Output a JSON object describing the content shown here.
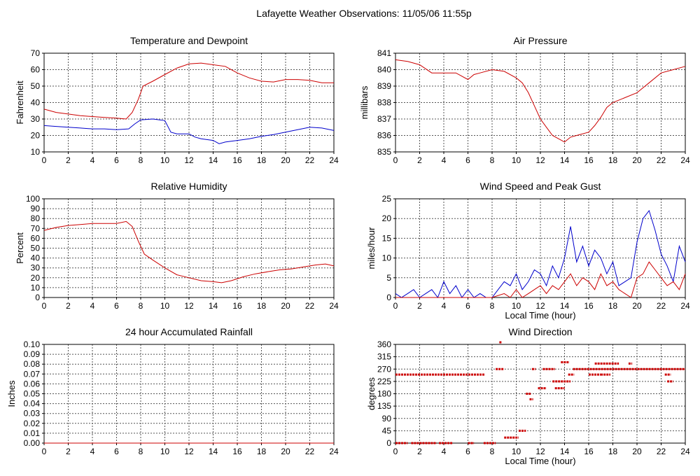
{
  "page": {
    "title": "Lafayette Weather Observations: 11/05/06 11:55p"
  },
  "colors": {
    "series_red": "#cc0000",
    "series_blue": "#0000cc",
    "grid": "#555555",
    "frame": "#000000"
  },
  "chart_data": [
    {
      "id": "temp",
      "type": "line",
      "title": "Temperature and Dewpoint",
      "xlabel": "",
      "ylabel": "Fahrenheit",
      "xlim": [
        0,
        24
      ],
      "ylim": [
        10,
        70
      ],
      "xticks": [
        0,
        2,
        4,
        6,
        8,
        10,
        12,
        14,
        16,
        18,
        20,
        22,
        24
      ],
      "yticks": [
        10,
        20,
        30,
        40,
        50,
        60,
        70
      ],
      "grid": true,
      "series": [
        {
          "color": "#cc0000",
          "x": [
            0,
            1,
            2,
            3,
            4,
            5,
            6,
            6.8,
            7.3,
            7.8,
            8.2,
            9,
            10,
            11,
            12,
            13,
            14,
            15,
            16,
            17,
            18,
            19,
            20,
            21,
            22,
            23,
            24
          ],
          "y": [
            36,
            34,
            33,
            32,
            31.5,
            31,
            30.5,
            30,
            34,
            42,
            50,
            53,
            57,
            61,
            63.5,
            64,
            63,
            62,
            58,
            55,
            53,
            52.5,
            54,
            54,
            53.5,
            52,
            52
          ]
        },
        {
          "color": "#0000cc",
          "x": [
            0,
            1,
            2,
            3,
            4,
            5,
            6,
            7,
            7.5,
            8,
            9,
            10,
            10.5,
            11,
            12,
            12.5,
            13,
            14,
            14.5,
            15,
            16,
            17,
            18,
            19,
            20,
            21,
            22,
            23,
            24
          ],
          "y": [
            26,
            25.5,
            25,
            24.5,
            24,
            24,
            23.5,
            24,
            27,
            29.5,
            30,
            29,
            22,
            21,
            21,
            19,
            18,
            17,
            15,
            16,
            17,
            18,
            19.5,
            20.5,
            22,
            23.5,
            25,
            24.5,
            23
          ]
        }
      ]
    },
    {
      "id": "pressure",
      "type": "line",
      "title": "Air Pressure",
      "xlabel": "",
      "ylabel": "millibars",
      "xlim": [
        0,
        24
      ],
      "ylim": [
        835,
        841
      ],
      "xticks": [
        0,
        2,
        4,
        6,
        8,
        10,
        12,
        14,
        16,
        18,
        20,
        22,
        24
      ],
      "yticks": [
        835,
        836,
        837,
        838,
        839,
        840,
        841
      ],
      "grid": true,
      "series": [
        {
          "color": "#cc0000",
          "x": [
            0,
            1,
            2,
            3,
            4,
            5,
            6,
            6.5,
            7,
            8,
            9,
            10,
            10.5,
            11,
            11.5,
            12,
            12.5,
            13,
            13.5,
            14,
            14.5,
            15,
            16,
            16.5,
            17,
            17.5,
            18,
            19,
            20,
            21,
            22,
            23,
            24
          ],
          "y": [
            840.6,
            840.5,
            840.3,
            839.8,
            839.8,
            839.8,
            839.4,
            839.7,
            839.8,
            840,
            839.9,
            839.5,
            839.2,
            838.6,
            837.8,
            837,
            836.5,
            836,
            835.8,
            835.6,
            835.9,
            836,
            836.2,
            836.6,
            837.1,
            837.7,
            838,
            838.3,
            838.6,
            839.2,
            839.8,
            840,
            840.2
          ]
        }
      ]
    },
    {
      "id": "humidity",
      "type": "line",
      "title": "Relative Humidity",
      "xlabel": "",
      "ylabel": "Percent",
      "xlim": [
        0,
        24
      ],
      "ylim": [
        0,
        100
      ],
      "xticks": [
        0,
        2,
        4,
        6,
        8,
        10,
        12,
        14,
        16,
        18,
        20,
        22,
        24
      ],
      "yticks": [
        0,
        10,
        20,
        30,
        40,
        50,
        60,
        70,
        80,
        90,
        100
      ],
      "grid": true,
      "series": [
        {
          "color": "#cc0000",
          "x": [
            0,
            1,
            2,
            3,
            4,
            5,
            6,
            6.8,
            7.3,
            7.8,
            8.3,
            9,
            10,
            11,
            12,
            13,
            14,
            14.7,
            15.5,
            16.5,
            17.5,
            18.5,
            19.5,
            20.5,
            21.5,
            22.5,
            23.3,
            24
          ],
          "y": [
            68,
            71,
            73,
            74,
            75,
            75,
            75,
            77,
            72,
            57,
            44,
            38,
            30,
            23,
            20,
            17,
            16,
            15,
            17,
            21,
            24,
            26,
            28,
            29,
            31,
            33,
            34,
            32
          ]
        }
      ]
    },
    {
      "id": "wind",
      "type": "line",
      "title": "Wind Speed and Peak Gust",
      "xlabel": "Local Time (hour)",
      "ylabel": "miles/hour",
      "xlim": [
        0,
        24
      ],
      "ylim": [
        0,
        25
      ],
      "xticks": [
        0,
        2,
        4,
        6,
        8,
        10,
        12,
        14,
        16,
        18,
        20,
        22,
        24
      ],
      "yticks": [
        0,
        5,
        10,
        15,
        20,
        25
      ],
      "grid": true,
      "series": [
        {
          "color": "#0000cc",
          "x": [
            0,
            0.5,
            1,
            1.5,
            2,
            2.5,
            3,
            3.5,
            4,
            4.5,
            5,
            5.5,
            6,
            6.5,
            7,
            7.5,
            8,
            8.5,
            9,
            9.5,
            10,
            10.5,
            11,
            11.5,
            12,
            12.5,
            13,
            13.5,
            14,
            14.5,
            15,
            15.5,
            16,
            16.5,
            17,
            17.5,
            18,
            18.5,
            19,
            19.5,
            20,
            20.5,
            21,
            21.5,
            22,
            22.5,
            23,
            23.5,
            24
          ],
          "y": [
            1,
            0,
            1,
            2,
            0,
            1,
            2,
            0,
            4,
            1,
            3,
            0,
            2,
            0,
            1,
            0,
            0,
            2,
            4,
            3,
            6,
            2,
            4,
            7,
            6,
            3,
            8,
            5,
            10,
            18,
            9,
            13,
            8,
            12,
            10,
            6,
            9,
            3,
            4,
            5,
            14,
            20,
            22,
            17,
            11,
            8,
            4,
            13,
            9
          ]
        },
        {
          "color": "#cc0000",
          "x": [
            0,
            1,
            2,
            3,
            4,
            5,
            6,
            7,
            8,
            9,
            9.5,
            10,
            10.5,
            11,
            11.5,
            12,
            12.5,
            13,
            13.5,
            14,
            14.5,
            15,
            15.5,
            16,
            16.5,
            17,
            17.5,
            18,
            18.5,
            19,
            19.5,
            20,
            20.5,
            21,
            21.5,
            22,
            22.5,
            23,
            23.5,
            24
          ],
          "y": [
            0,
            0,
            0,
            0,
            0,
            0,
            0,
            0,
            0,
            1,
            0,
            2,
            0,
            1,
            2,
            3,
            1,
            3,
            2,
            4,
            6,
            3,
            5,
            4,
            2,
            6,
            3,
            4,
            2,
            1,
            0,
            5,
            6,
            9,
            7,
            5,
            3,
            4,
            2,
            6
          ]
        }
      ]
    },
    {
      "id": "rain",
      "type": "line",
      "title": "24 hour Accumulated Rainfall",
      "xlabel": "",
      "ylabel": "Inches",
      "xlim": [
        0,
        24
      ],
      "ylim": [
        0,
        0.1
      ],
      "xticks": [
        0,
        2,
        4,
        6,
        8,
        10,
        12,
        14,
        16,
        18,
        20,
        22,
        24
      ],
      "yticks": [
        0.0,
        0.01,
        0.02,
        0.03,
        0.04,
        0.05,
        0.06,
        0.07,
        0.08,
        0.09,
        0.1
      ],
      "ytick_labels": [
        "0.00",
        "0.01",
        "0.02",
        "0.03",
        "0.04",
        "0.05",
        "0.06",
        "0.07",
        "0.08",
        "0.09",
        "0.10"
      ],
      "grid": true,
      "series": [
        {
          "color": "#cc0000",
          "x": [
            0,
            24
          ],
          "y": [
            0,
            0
          ]
        }
      ]
    },
    {
      "id": "direction",
      "type": "scatter",
      "title": "Wind Direction",
      "xlabel": "Local Time (hour)",
      "ylabel": "degrees",
      "xlim": [
        0,
        24
      ],
      "ylim": [
        0,
        360
      ],
      "xticks": [
        0,
        2,
        4,
        6,
        8,
        10,
        12,
        14,
        16,
        18,
        20,
        22,
        24
      ],
      "yticks": [
        0,
        45,
        90,
        135,
        180,
        225,
        270,
        315,
        360
      ],
      "grid": true,
      "series": [
        {
          "color": "#cc0000",
          "segments": [
            {
              "x": [
                0,
                7.4
              ],
              "y": 250
            },
            {
              "x": [
                0,
                1
              ],
              "y": 0
            },
            {
              "x": [
                1.3,
                3.4
              ],
              "y": 0
            },
            {
              "x": [
                3.6,
                4.7
              ],
              "y": 0
            },
            {
              "x": [
                6,
                6.5
              ],
              "y": 0
            },
            {
              "x": [
                7.3,
                8.3
              ],
              "y": 0
            },
            {
              "x": [
                8.3,
                9
              ],
              "y": 270
            },
            {
              "x": [
                8.6,
                8.8
              ],
              "y": 370
            },
            {
              "x": [
                9,
                10.2
              ],
              "y": 20
            },
            {
              "x": [
                10.2,
                10.8
              ],
              "y": 45
            },
            {
              "x": [
                10.8,
                11.2
              ],
              "y": 180
            },
            {
              "x": [
                11.1,
                11.4
              ],
              "y": 160
            },
            {
              "x": [
                11.3,
                11.6
              ],
              "y": 270
            },
            {
              "x": [
                11.8,
                12.5
              ],
              "y": 200
            },
            {
              "x": [
                12.2,
                13.2
              ],
              "y": 270
            },
            {
              "x": [
                13.2,
                14
              ],
              "y": 200
            },
            {
              "x": [
                13,
                14.5
              ],
              "y": 225
            },
            {
              "x": [
                13.7,
                14.4
              ],
              "y": 295
            },
            {
              "x": [
                14.3,
                14.8
              ],
              "y": 250
            },
            {
              "x": [
                14.7,
                24
              ],
              "y": 270
            },
            {
              "x": [
                16,
                17
              ],
              "y": 250
            },
            {
              "x": [
                17,
                17.8
              ],
              "y": 250
            },
            {
              "x": [
                16.5,
                18.5
              ],
              "y": 290
            },
            {
              "x": [
                19.3,
                19.6
              ],
              "y": 290
            },
            {
              "x": [
                22.3,
                22.8
              ],
              "y": 250
            },
            {
              "x": [
                22.5,
                23
              ],
              "y": 225
            }
          ]
        }
      ]
    }
  ]
}
